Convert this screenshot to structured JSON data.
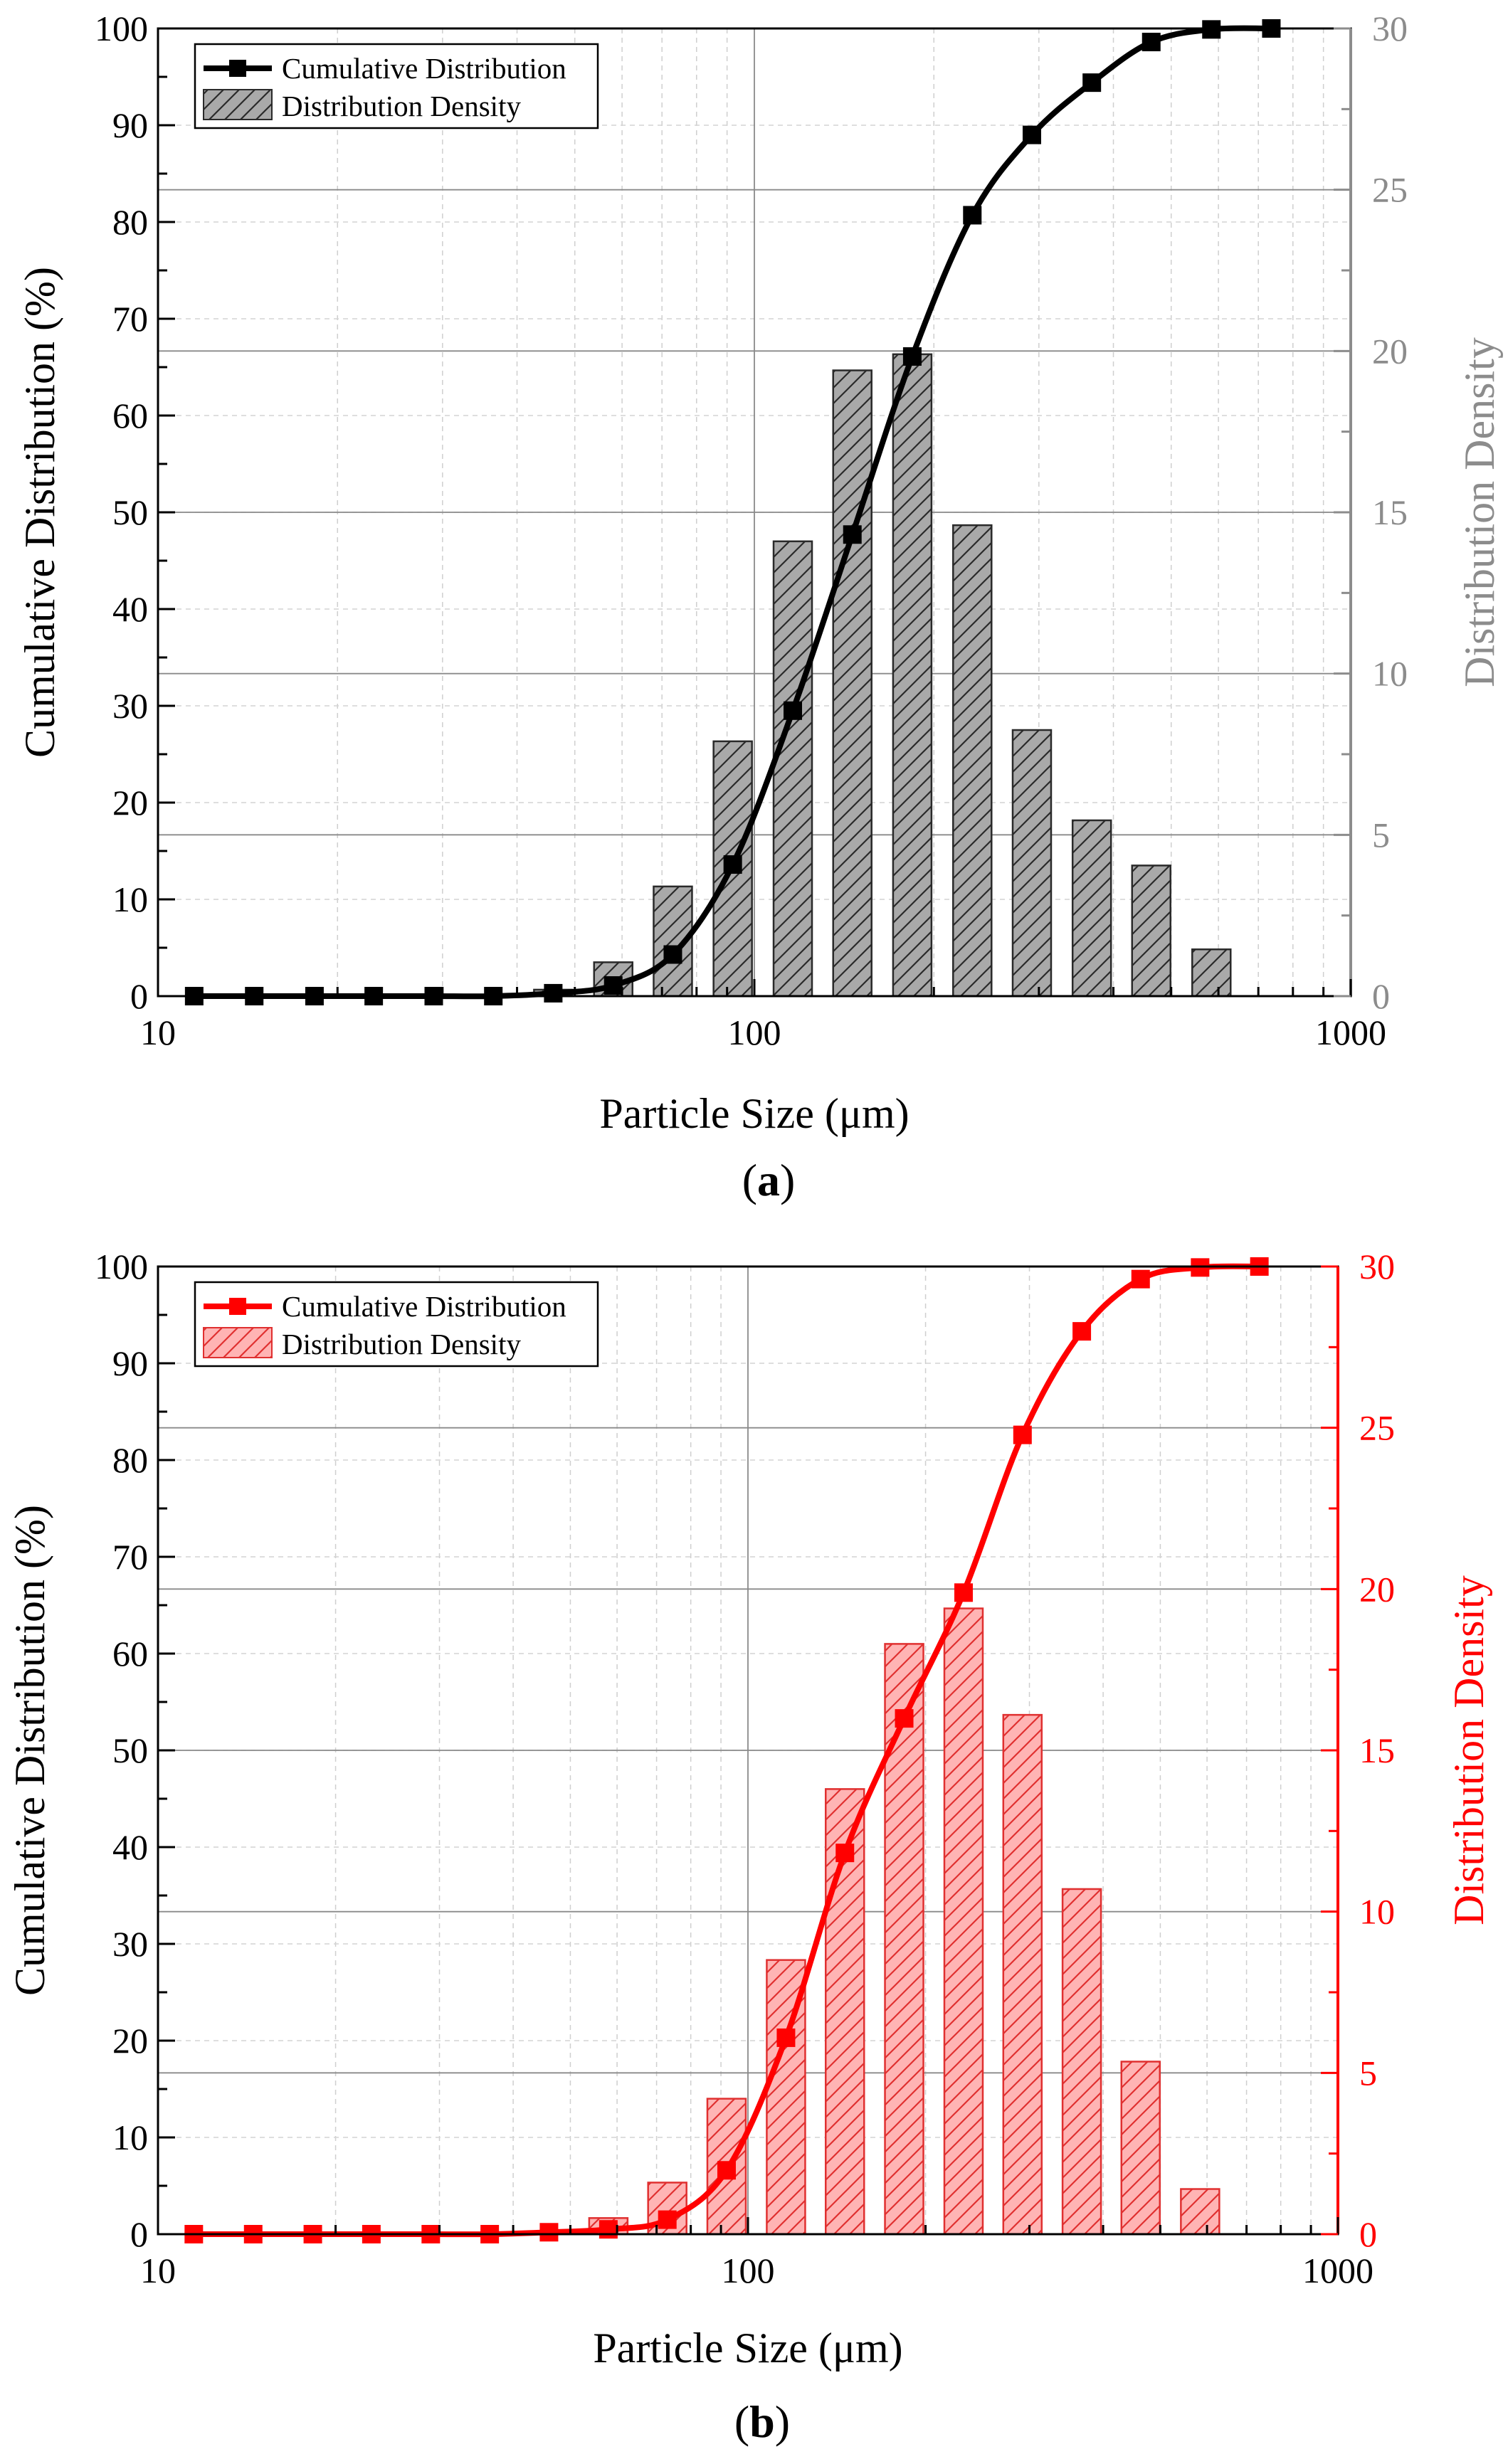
{
  "chart_data": [
    {
      "panel": "a",
      "caption": "(a)",
      "caption_letter": "a",
      "type": "bar+line",
      "xscale": "log",
      "xlim": [
        10,
        1000
      ],
      "xticks": [
        10,
        100,
        1000
      ],
      "xlabel": "Particle Size (μm)",
      "ylabel": "Cumulative Distribution (%)",
      "ylim": [
        0,
        100
      ],
      "yticks": [
        0,
        10,
        20,
        30,
        40,
        50,
        60,
        70,
        80,
        90,
        100
      ],
      "y2label": "Distribution Density",
      "y2lim": [
        0,
        30
      ],
      "y2ticks": [
        0,
        5,
        10,
        15,
        20,
        25,
        30
      ],
      "colors": {
        "line": "#000000",
        "bar_fill": "#a9a9a9",
        "hatch": "#2a2a2a",
        "right_axis": "#8c8c8c"
      },
      "legend": {
        "position": "top-left",
        "line_label": "Cumulative Distribution",
        "bar_label": "Distribution Density"
      },
      "series": [
        {
          "name": "Cumulative Distribution",
          "kind": "line",
          "x": [
            11.5,
            14.5,
            18.3,
            23,
            29,
            36.5,
            46,
            58,
            73,
            92,
            116,
            146,
            184,
            232,
            292,
            368,
            463,
            584,
            736
          ],
          "y": [
            0,
            0,
            0,
            0,
            0,
            0,
            0.3,
            1.1,
            4.3,
            13.6,
            29.5,
            47.7,
            66.1,
            80.7,
            89,
            94.4,
            98.6,
            99.9,
            100
          ]
        },
        {
          "name": "Distribution Density",
          "kind": "bar",
          "axis": "right",
          "x": [
            46,
            58,
            73,
            92,
            116,
            146,
            184,
            232,
            292,
            368,
            463,
            584
          ],
          "y": [
            0.2,
            1.05,
            3.4,
            7.9,
            14.1,
            19.4,
            19.9,
            14.6,
            8.25,
            5.45,
            4.05,
            1.45
          ]
        }
      ]
    },
    {
      "panel": "b",
      "caption": "(b)",
      "caption_letter": "b",
      "type": "bar+line",
      "xscale": "log",
      "xlim": [
        10,
        1000
      ],
      "xticks": [
        10,
        100,
        1000
      ],
      "xlabel": "Particle Size (μm)",
      "ylabel": "Cumulative Distribution (%)",
      "ylim": [
        0,
        100
      ],
      "yticks": [
        0,
        10,
        20,
        30,
        40,
        50,
        60,
        70,
        80,
        90,
        100
      ],
      "y2label": "Distribution Density",
      "y2lim": [
        0,
        30
      ],
      "y2ticks": [
        0,
        5,
        10,
        15,
        20,
        25,
        30
      ],
      "colors": {
        "line": "#ff0000",
        "bar_fill": "#ffb4b4",
        "hatch": "#e03030",
        "right_axis": "#ff0000"
      },
      "legend": {
        "position": "top-left",
        "line_label": "Cumulative Distribution",
        "bar_label": "Distribution Density"
      },
      "series": [
        {
          "name": "Cumulative Distribution",
          "kind": "line",
          "x": [
            11.5,
            14.5,
            18.3,
            23,
            29,
            36.5,
            46,
            58,
            73,
            92,
            116,
            146,
            184,
            232,
            292,
            368,
            463,
            584,
            736
          ],
          "y": [
            0,
            0,
            0,
            0,
            0,
            0,
            0.2,
            0.5,
            1.5,
            6.6,
            20.3,
            39.4,
            53.3,
            66.3,
            82.6,
            93.3,
            98.7,
            99.9,
            100
          ]
        },
        {
          "name": "Distribution Density",
          "kind": "bar",
          "axis": "right",
          "x": [
            58,
            73,
            92,
            116,
            146,
            184,
            232,
            292,
            368,
            463,
            584
          ],
          "y": [
            0.5,
            1.6,
            4.2,
            8.5,
            13.8,
            18.3,
            19.4,
            16.1,
            10.7,
            5.35,
            1.4
          ]
        }
      ]
    }
  ]
}
